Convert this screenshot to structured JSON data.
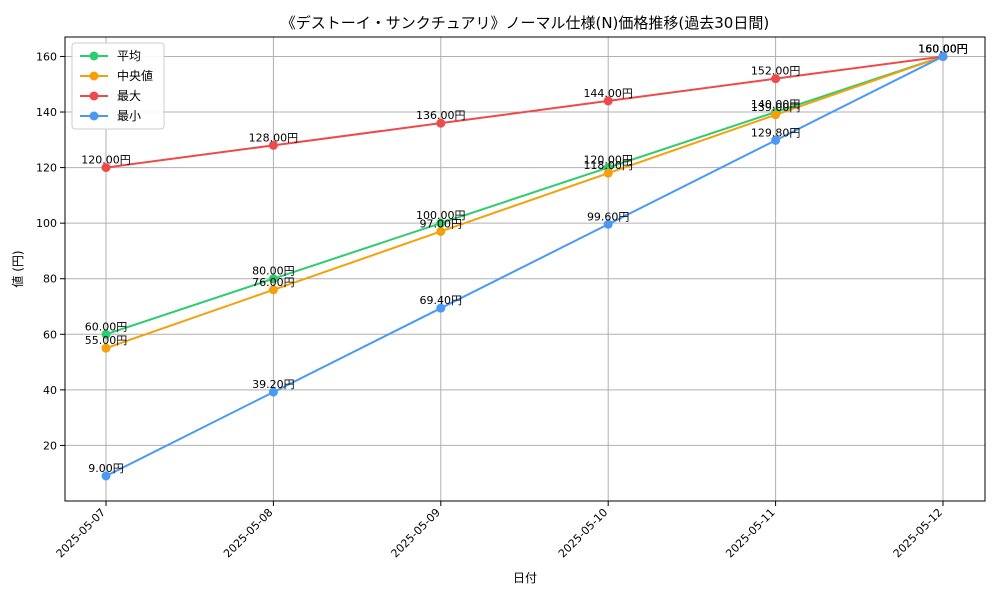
{
  "chart_data": {
    "type": "line",
    "title": "《デストーイ・サンクチュアリ》ノーマル仕様(N)価格推移(過去30日間)",
    "xlabel": "日付",
    "ylabel": "値 (円)",
    "categories": [
      "2025-05-07",
      "2025-05-08",
      "2025-05-09",
      "2025-05-10",
      "2025-05-11",
      "2025-05-12"
    ],
    "ylim": [
      0,
      167
    ],
    "yticks": [
      20,
      40,
      60,
      80,
      100,
      120,
      140,
      160
    ],
    "grid": true,
    "legend_position": "top-left",
    "value_suffix": "円",
    "series": [
      {
        "name": "平均",
        "color": "#2ecc71",
        "values": [
          60.0,
          80.0,
          100.0,
          120.0,
          140.0,
          160.0
        ]
      },
      {
        "name": "中央値",
        "color": "#f5a00b",
        "values": [
          55.0,
          76.0,
          97.0,
          118.0,
          139.0,
          160.0
        ]
      },
      {
        "name": "最大",
        "color": "#ef4a4a",
        "values": [
          120.0,
          128.0,
          136.0,
          144.0,
          152.0,
          160.0
        ]
      },
      {
        "name": "最小",
        "color": "#4a9af5",
        "values": [
          9.0,
          39.2,
          69.4,
          99.6,
          129.8,
          160.0
        ]
      }
    ]
  }
}
